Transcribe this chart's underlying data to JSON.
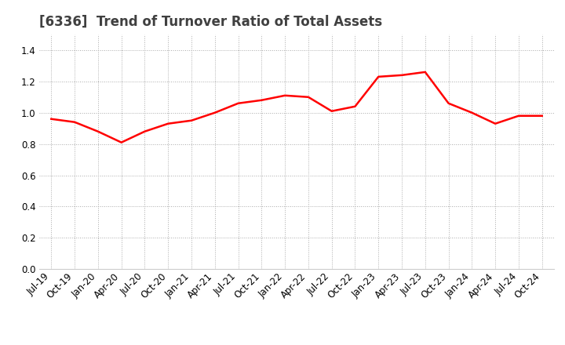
{
  "title": "[6336]  Trend of Turnover Ratio of Total Assets",
  "x_labels": [
    "Jul-19",
    "Oct-19",
    "Jan-20",
    "Apr-20",
    "Jul-20",
    "Oct-20",
    "Jan-21",
    "Apr-21",
    "Jul-21",
    "Oct-21",
    "Jan-22",
    "Apr-22",
    "Jul-22",
    "Oct-22",
    "Jan-23",
    "Apr-23",
    "Jul-23",
    "Oct-23",
    "Jan-24",
    "Apr-24",
    "Jul-24",
    "Oct-24"
  ],
  "y_values": [
    0.96,
    0.94,
    0.88,
    0.81,
    0.88,
    0.93,
    0.95,
    1.0,
    1.06,
    1.08,
    1.11,
    1.1,
    1.01,
    1.04,
    1.23,
    1.24,
    1.26,
    1.06,
    1.0,
    0.93,
    0.98,
    0.98
  ],
  "line_color": "#FF0000",
  "line_width": 1.8,
  "ylim": [
    0.0,
    1.5
  ],
  "yticks": [
    0.0,
    0.2,
    0.4,
    0.6,
    0.8,
    1.0,
    1.2,
    1.4
  ],
  "grid_color": "#aaaaaa",
  "background_color": "#ffffff",
  "title_fontsize": 12,
  "tick_fontsize": 8.5,
  "title_color": "#404040"
}
